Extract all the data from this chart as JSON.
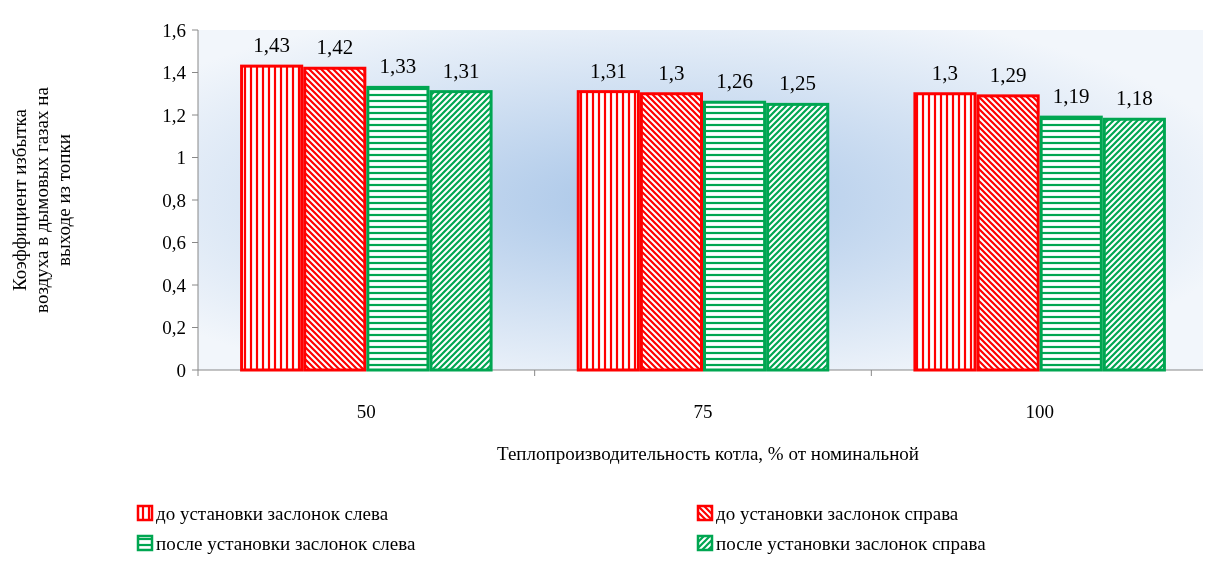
{
  "chart_data": {
    "type": "bar",
    "xlabel": "Теплопроизводительность котла, % от номинальной",
    "ylabel": "Коэффициент избытка воздуха в дымовых газах на выходе из топки",
    "categories": [
      "50",
      "75",
      "100"
    ],
    "series": [
      {
        "name": "до установки заслонок слева",
        "color": "#ff0000",
        "values": [
          1.43,
          1.31,
          1.3
        ],
        "value_labels": [
          "1,43",
          "1,31",
          "1,3"
        ]
      },
      {
        "name": "до установки заслонок справа",
        "color": "#ff0000",
        "values": [
          1.42,
          1.3,
          1.29
        ],
        "value_labels": [
          "1,42",
          "1,3",
          "1,29"
        ]
      },
      {
        "name": "после установки заслонок слева",
        "color": "#00a651",
        "values": [
          1.33,
          1.26,
          1.19
        ],
        "value_labels": [
          "1,33",
          "1,26",
          "1,19"
        ]
      },
      {
        "name": "после установки заслонок справа",
        "color": "#00a651",
        "values": [
          1.31,
          1.25,
          1.18
        ],
        "value_labels": [
          "1,31",
          "1,25",
          "1,18"
        ]
      }
    ],
    "ylim": [
      0,
      1.6
    ],
    "yticks": [
      0,
      {
        "value": 0.2,
        "label": "0,2"
      },
      {
        "value": 0.4,
        "label": "0,4"
      },
      {
        "value": 0.6,
        "label": "0,6"
      },
      {
        "value": 0.8,
        "label": "0,8"
      },
      1,
      {
        "value": 1.2,
        "label": "1,2"
      },
      {
        "value": 1.4,
        "label": "1,4"
      },
      {
        "value": 1.6,
        "label": "1,6"
      }
    ],
    "legend": "bottom"
  }
}
